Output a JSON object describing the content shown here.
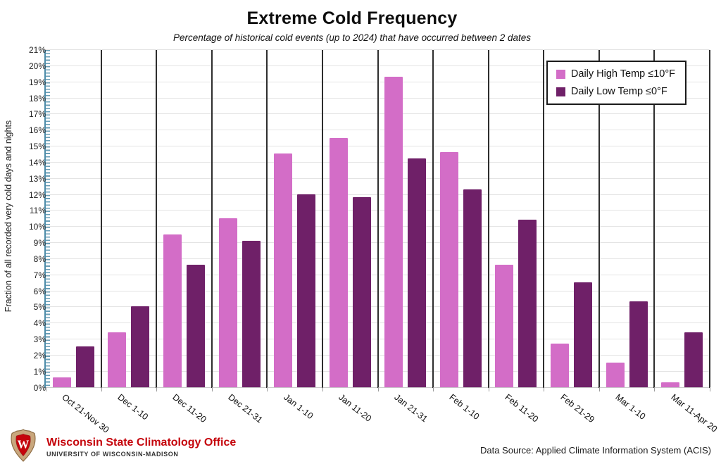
{
  "header": {
    "title": "Extreme Cold Frequency",
    "subtitle": "Percentage of historical cold events (up to 2024) that have occurred between 2 dates"
  },
  "chart_data": {
    "type": "bar",
    "categories": [
      "Oct 21-Nov 30",
      "Dec 1-10",
      "Dec 11-20",
      "Dec 21-31",
      "Jan 1-10",
      "Jan 11-20",
      "Jan 21-31",
      "Feb 1-10",
      "Feb 11-20",
      "Feb 21-29",
      "Mar 1-10",
      "Mar 11-Apr 20"
    ],
    "series": [
      {
        "name": "Daily High Temp ≤10°F",
        "color": "#d36dc7",
        "values": [
          0.6,
          3.4,
          9.5,
          10.5,
          14.5,
          15.5,
          19.3,
          14.6,
          7.6,
          2.7,
          1.5,
          0.3
        ]
      },
      {
        "name": "Daily Low Temp ≤0°F",
        "color": "#6f2068",
        "values": [
          2.5,
          5.0,
          7.6,
          9.1,
          12.0,
          11.8,
          14.2,
          12.3,
          10.4,
          6.5,
          5.3,
          3.4
        ]
      }
    ],
    "title": "Extreme Cold Frequency",
    "xlabel": "",
    "ylabel": "Fraction of all recorded very cold days and nights",
    "ylim": [
      0,
      21
    ],
    "ytick_step": 1,
    "ytick_format": "percent",
    "grid": "horizontal 1% gridlines, vertical black category separators",
    "legend_position": "top-right",
    "axis_color": "#4d8ca9"
  },
  "footer": {
    "org_name": "Wisconsin State Climatology Office",
    "org_subtitle": "UNIVERSITY OF WISCONSIN-MADISON",
    "org_color": "#c5050c",
    "logo": "uw-madison-crest-icon",
    "data_source": "Data Source: Applied Climate Information System (ACIS)"
  }
}
